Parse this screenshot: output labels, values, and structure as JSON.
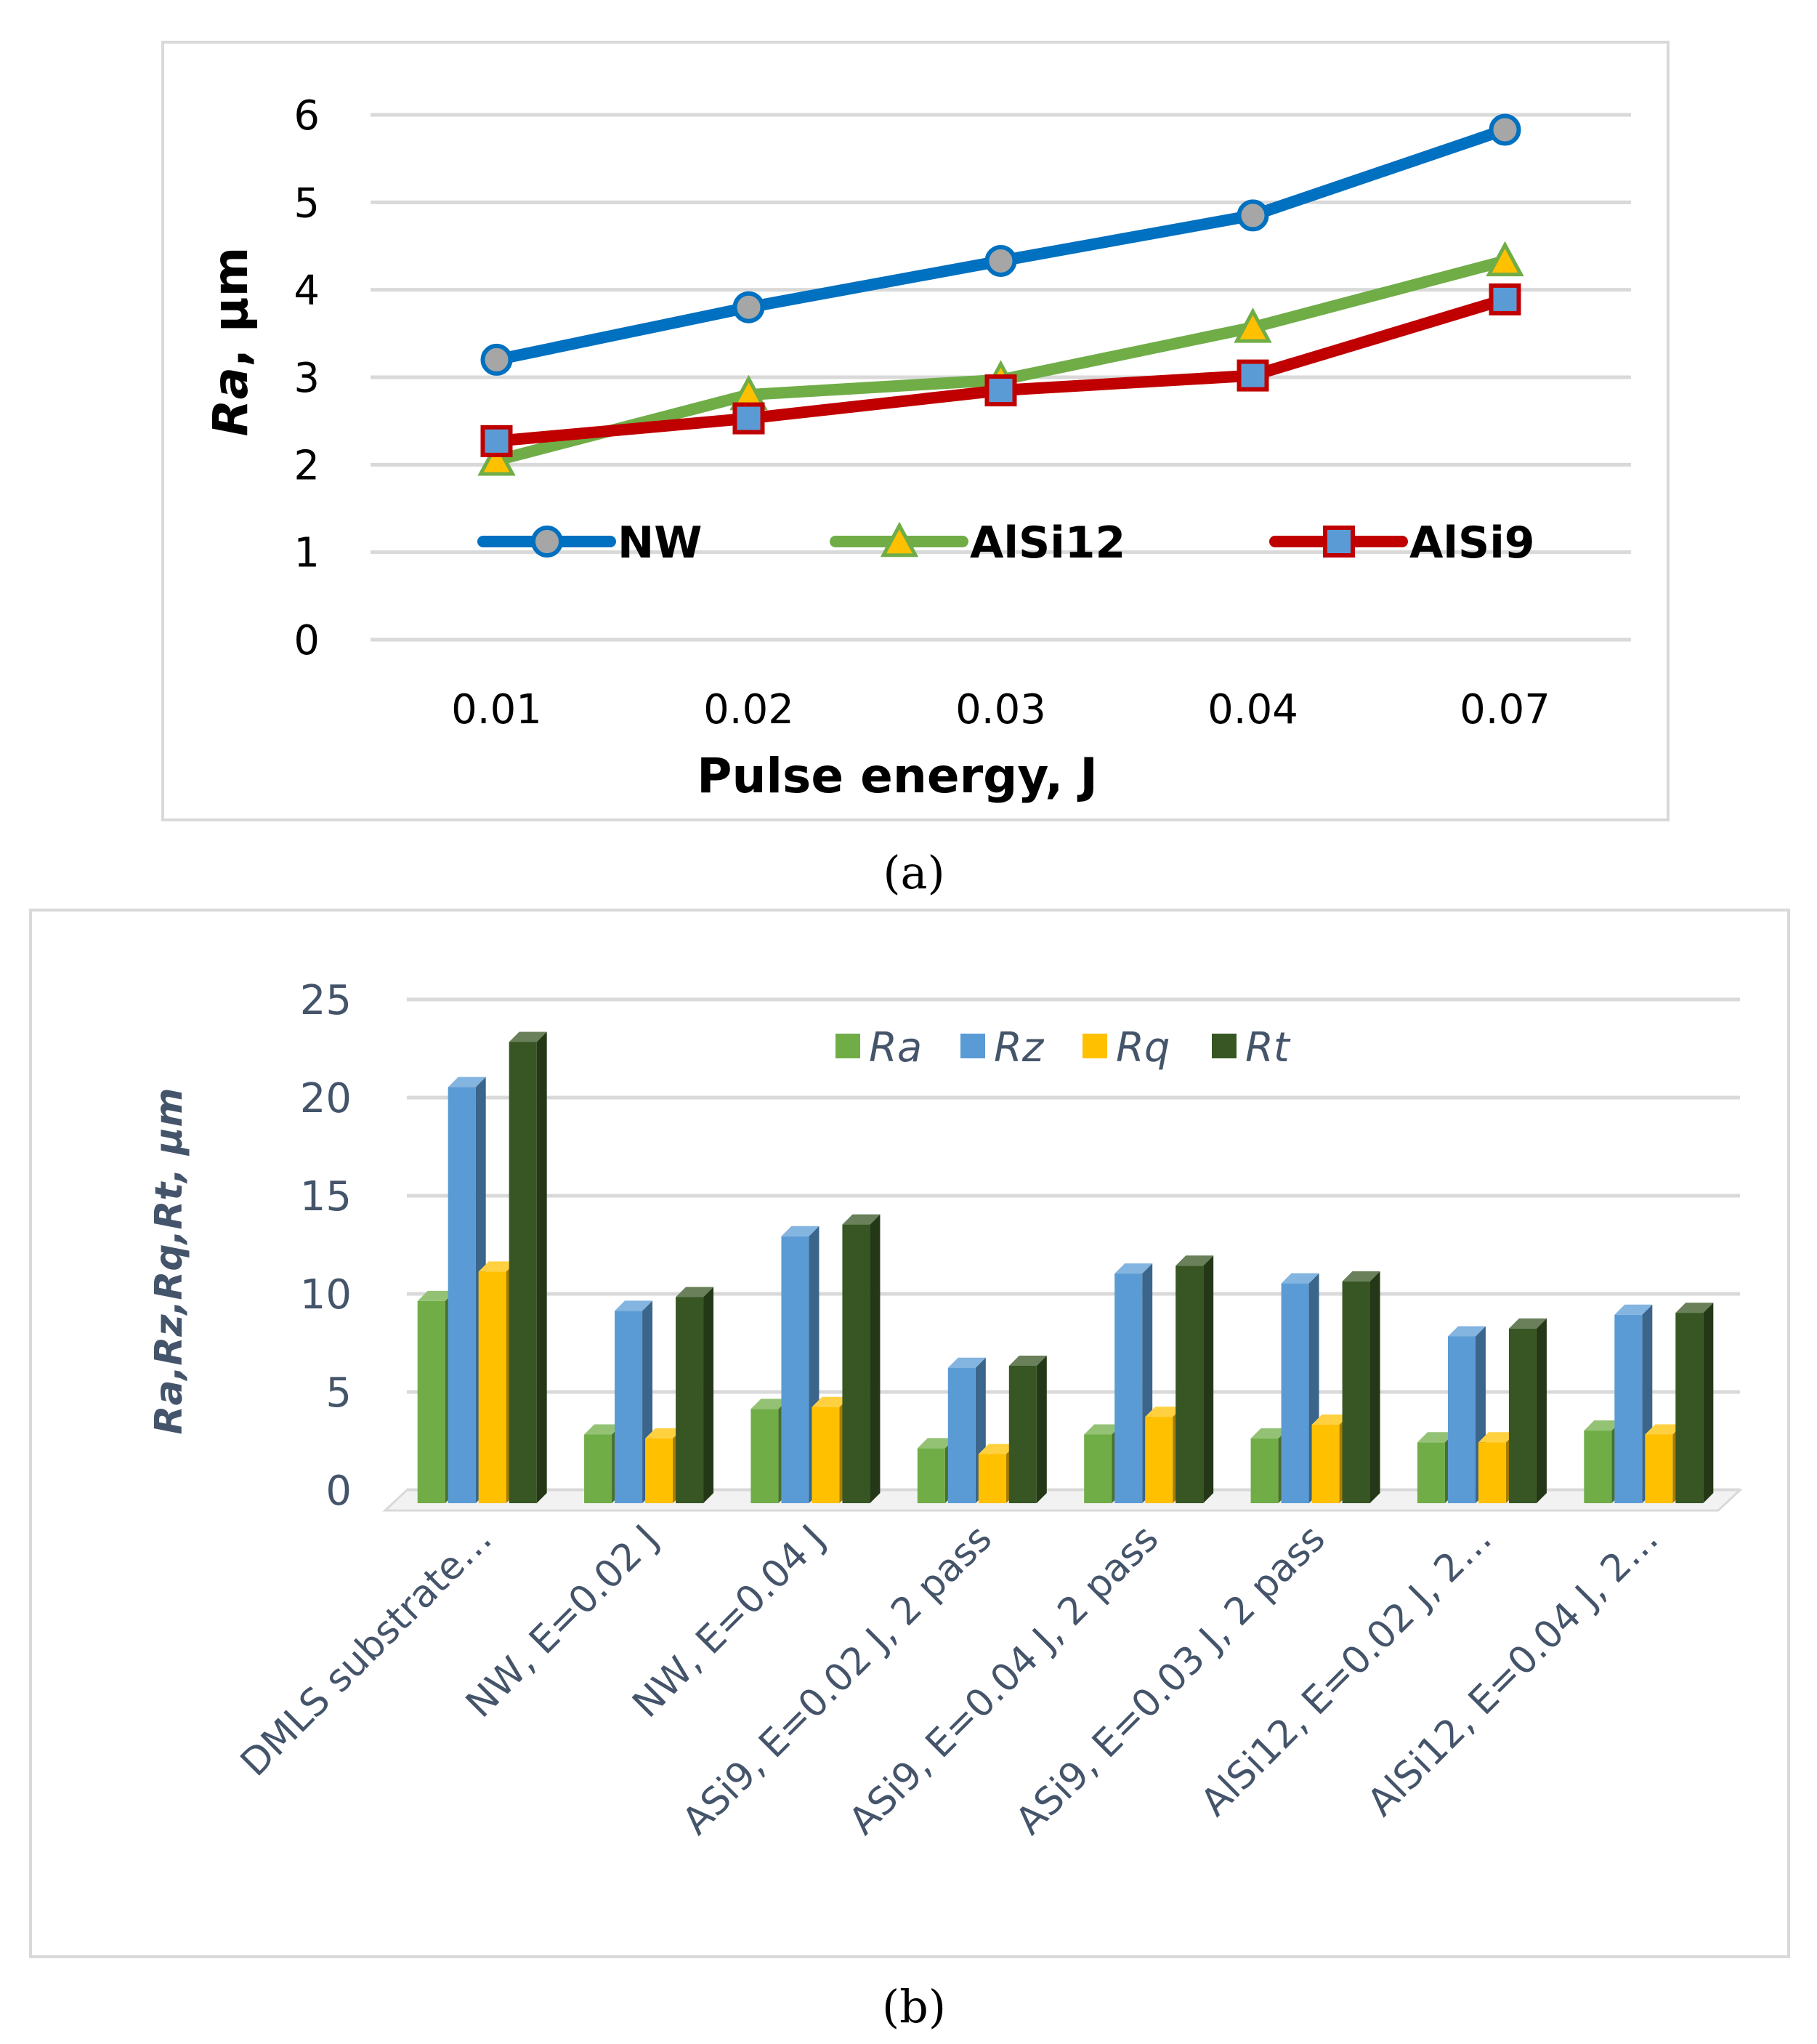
{
  "chart_data": [
    {
      "type": "line",
      "title": "",
      "xlabel_prefix": "Pulse energy, J",
      "ylabel_italic": "Ra",
      "ylabel_rest": ", µm",
      "categories": [
        "0.01",
        "0.02",
        "0.03",
        "0.04",
        "0.07"
      ],
      "ylim": [
        0,
        6
      ],
      "yticks": [
        "0",
        "1",
        "2",
        "3",
        "4",
        "5",
        "6"
      ],
      "grid": true,
      "legend_position": "inside-middle",
      "series": [
        {
          "name": "NW",
          "values": [
            3.2,
            3.8,
            4.33,
            4.85,
            5.83
          ],
          "color": "#0070c0",
          "marker": "circle",
          "marker_fill": "#a6a6a6"
        },
        {
          "name": "AlSi12",
          "values": [
            2.05,
            2.8,
            2.97,
            3.57,
            4.33
          ],
          "color": "#70ad47",
          "marker": "triangle",
          "marker_fill": "#ffc000"
        },
        {
          "name": "AlSi9",
          "values": [
            2.27,
            2.53,
            2.85,
            3.02,
            3.89
          ],
          "color": "#c00000",
          "marker": "square",
          "marker_fill": "#5b9bd5"
        }
      ],
      "caption": "(a)"
    },
    {
      "type": "bar",
      "title": "",
      "ylabel": "Ra,Rz,Rq,Rt, µm",
      "categories": [
        "DMLS substrate…",
        "NW, E=0.02 J",
        "NW, E=0.04 J",
        "ASi9, E=0.02 J, 2 pass",
        "ASi9, E=0.04 J, 2 pass",
        "ASi9, E=0.03 J, 2 pass",
        "AlSi12, E=0.02 J, 2…",
        "AlSi12, E=0.04 J, 2…"
      ],
      "ylim": [
        0,
        25
      ],
      "yticks": [
        "0",
        "5",
        "10",
        "15",
        "20",
        "25"
      ],
      "grid": true,
      "legend_position": "top-center",
      "series": [
        {
          "name": "Ra",
          "values": [
            10.3,
            3.5,
            4.8,
            2.8,
            3.5,
            3.3,
            3.1,
            3.7
          ],
          "color": "#70ad47"
        },
        {
          "name": "Rz",
          "values": [
            21.2,
            9.8,
            13.6,
            6.9,
            11.7,
            11.2,
            8.5,
            9.6
          ],
          "color": "#5b9bd5"
        },
        {
          "name": "Rq",
          "values": [
            11.8,
            3.3,
            4.9,
            2.5,
            4.4,
            4.0,
            3.1,
            3.5
          ],
          "color": "#ffc000"
        },
        {
          "name": "Rt",
          "values": [
            23.5,
            10.5,
            14.2,
            7.0,
            12.1,
            11.3,
            8.9,
            9.7
          ],
          "color": "#375623"
        }
      ],
      "caption": "(b)"
    }
  ]
}
